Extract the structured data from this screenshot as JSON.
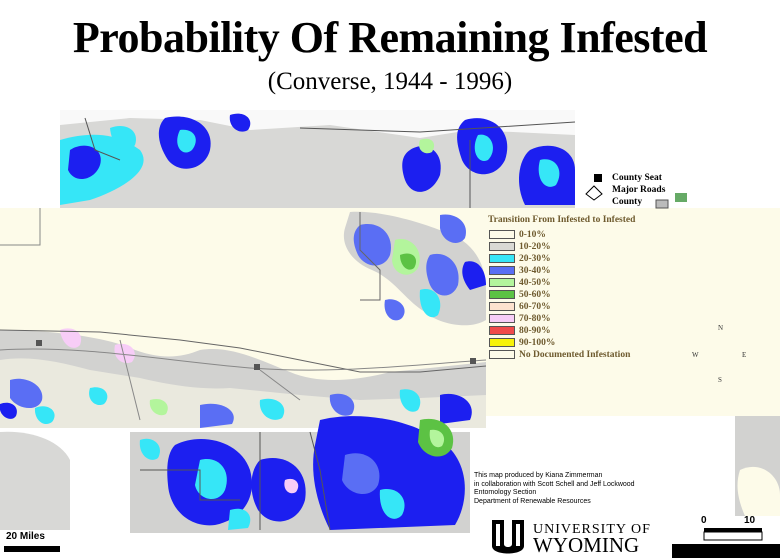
{
  "header": {
    "title": "Probability Of Remaining Infested",
    "subtitle": "(Converse, 1944 - 1996)"
  },
  "top_legend": {
    "items": [
      "County Seat",
      "Major Roads",
      "County"
    ]
  },
  "legend": {
    "title": "Transition From Infested to Infested",
    "items": [
      {
        "label": "0-10%",
        "color": "#fdfbe9"
      },
      {
        "label": "10-20%",
        "color": "#d9d9d4"
      },
      {
        "label": "20-30%",
        "color": "#36e6f7"
      },
      {
        "label": "30-40%",
        "color": "#5a6ef4"
      },
      {
        "label": "40-50%",
        "color": "#b3f59c"
      },
      {
        "label": "50-60%",
        "color": "#5cc244"
      },
      {
        "label": "60-70%",
        "color": "#fde2cf"
      },
      {
        "label": "70-80%",
        "color": "#f7cdf7"
      },
      {
        "label": "80-90%",
        "color": "#f04a4a"
      },
      {
        "label": "90-100%",
        "color": "#f7f20a"
      },
      {
        "label": "No Documented Infestation",
        "color": "#fdfbe9"
      }
    ]
  },
  "compass": {
    "n": "N",
    "s": "S",
    "e": "E",
    "w": "W"
  },
  "credits": [
    "This map produced by Kiana Zimmerman",
    "in collaboration with Scott Schell and Jeff Lockwood",
    "Entomology Section",
    "Department of Renewable Resources"
  ],
  "scale_left": {
    "label": "20  Miles"
  },
  "scale_right": {
    "label_0": "0",
    "label_10": "10"
  },
  "logo": {
    "line1": "UNIVERSITY OF",
    "line2": "WYOMING"
  },
  "colors": {
    "background": "#fdfbe9",
    "gray": "#d2d2d0",
    "dark_gray": "#a9a9a9",
    "cyan": "#36e6f7",
    "blue": "#1c1ff0",
    "periwinkle": "#5a6ef4",
    "light_green": "#b3f59c",
    "green": "#5cc244",
    "pink": "#f7cdf7",
    "county_seat": "#555555"
  }
}
